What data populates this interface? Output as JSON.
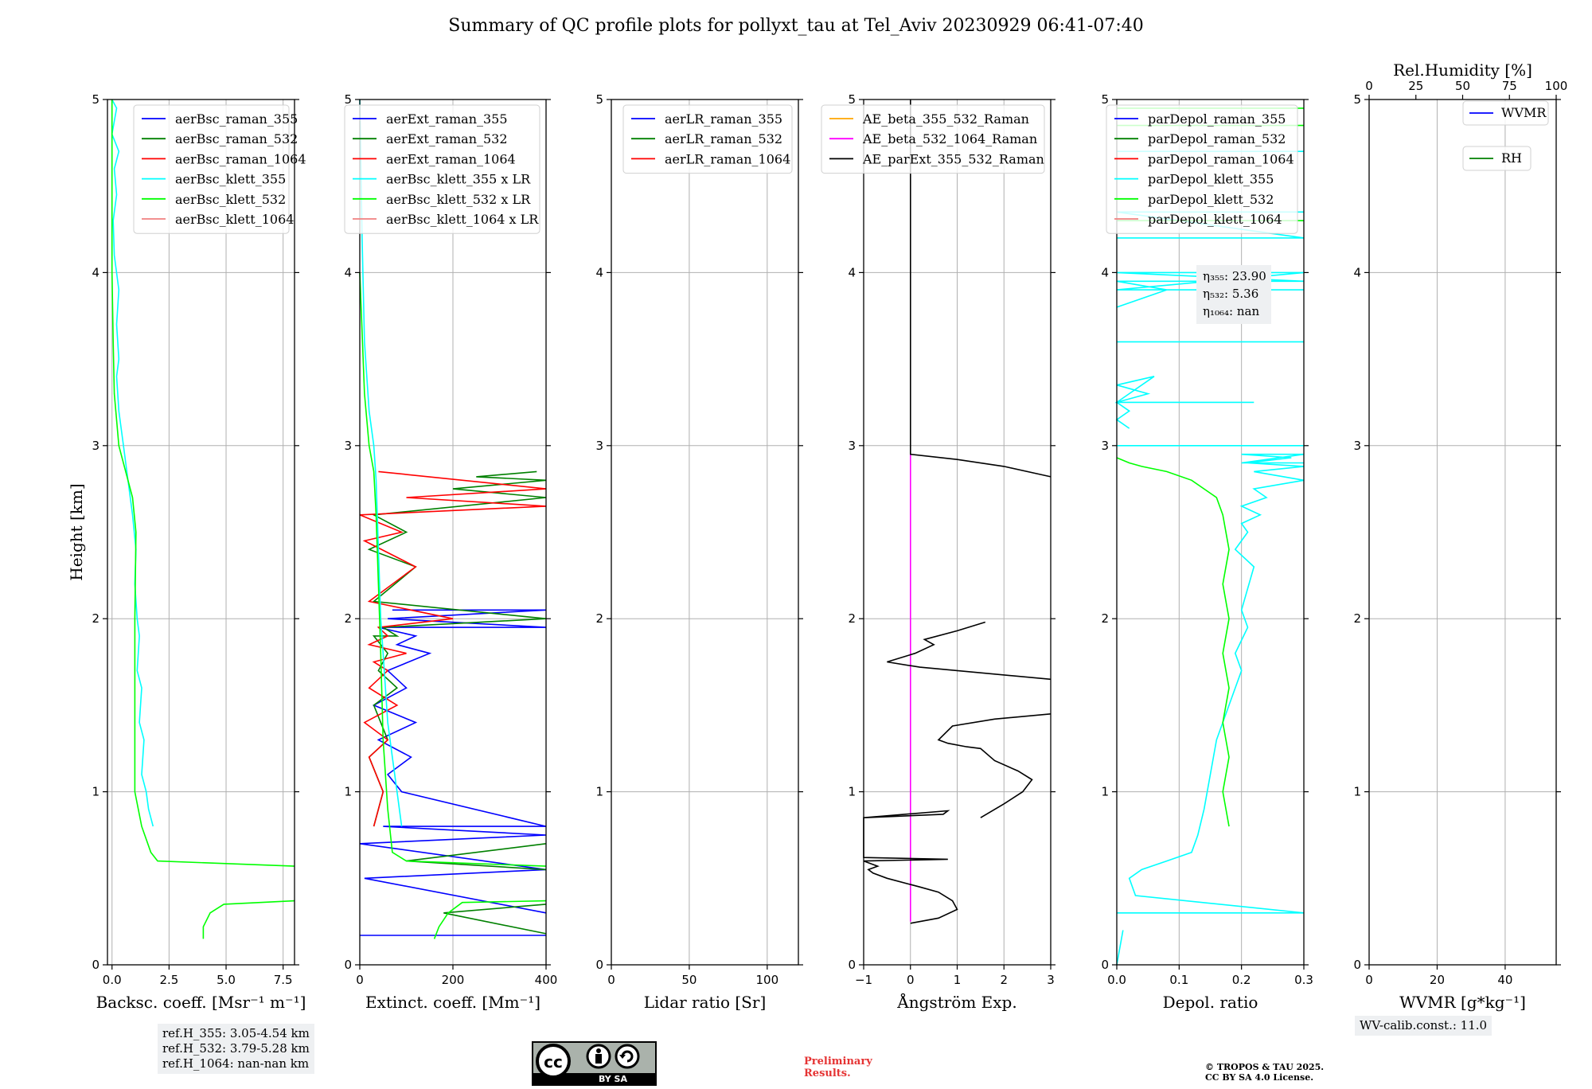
{
  "title": "Summary of QC profile plots for pollyxt_tau at Tel_Aviv 20230929 06:41-07:40",
  "chart_data": [
    {
      "type": "line",
      "panel": "backscatter",
      "xlabel": "Backsc. coeff. [Msr⁻¹ m⁻¹]",
      "ylabel": "Height [km]",
      "xlim": [
        -0.2,
        8.0
      ],
      "ylim": [
        0,
        5
      ],
      "xticks": [
        0.0,
        2.5,
        5.0,
        7.5
      ],
      "xtick_labels": [
        "0.0",
        "2.5",
        "5.0",
        "7.5"
      ],
      "yticks": [
        0,
        1,
        2,
        3,
        4,
        5
      ],
      "legend": [
        "aerBsc_raman_355",
        "aerBsc_raman_532",
        "aerBsc_raman_1064",
        "aerBsc_klett_355",
        "aerBsc_klett_532",
        "aerBsc_klett_1064"
      ],
      "legend_colors": [
        "#0000ff",
        "#008000",
        "#ff0000",
        "#00ffff",
        "#00ff00",
        "#f08080"
      ],
      "legend_position": "top-right",
      "series": [
        {
          "name": "aerBsc_klett_355",
          "color": "#00ffff",
          "x": [
            1.8,
            1.6,
            1.5,
            1.3,
            1.4,
            1.2,
            1.3,
            1.1,
            1.2,
            1.1,
            1.0,
            1.05,
            0.9,
            0.7,
            0.5,
            0.3,
            0.2,
            0.3,
            0.2,
            0.3,
            0.1,
            0.05,
            0.2,
            0.1,
            0.3,
            0.0,
            0.2,
            0.0
          ],
          "y": [
            0.8,
            0.9,
            1.0,
            1.1,
            1.3,
            1.4,
            1.6,
            1.7,
            1.9,
            2.0,
            2.2,
            2.4,
            2.6,
            2.8,
            3.0,
            3.2,
            3.4,
            3.5,
            3.7,
            3.9,
            4.1,
            4.3,
            4.45,
            4.6,
            4.7,
            4.8,
            4.95,
            5.0
          ]
        },
        {
          "name": "aerBsc_klett_532",
          "color": "#00ff00",
          "x": [
            4.0,
            4.0,
            4.3,
            4.9,
            8.0,
            null,
            8.0,
            2.0,
            1.7,
            1.3,
            1.0,
            1.0,
            1.0,
            1.05,
            0.9,
            0.6,
            0.3,
            0.1,
            0.05,
            0.0,
            0.0,
            0.0,
            0.0,
            0.0
          ],
          "y": [
            0.15,
            0.22,
            0.3,
            0.35,
            0.37,
            null,
            0.57,
            0.6,
            0.65,
            0.8,
            1.0,
            1.5,
            2.0,
            2.5,
            2.7,
            2.85,
            3.0,
            3.3,
            3.6,
            4.0,
            4.3,
            4.6,
            4.8,
            5.0
          ]
        }
      ]
    },
    {
      "type": "line",
      "panel": "extinction",
      "xlabel": "Extinct. coeff. [Mm⁻¹]",
      "xlim": [
        0,
        400
      ],
      "ylim": [
        0,
        5
      ],
      "xticks": [
        0,
        200,
        400
      ],
      "xtick_labels": [
        "0",
        "200",
        "400"
      ],
      "yticks": [
        0,
        1,
        2,
        3,
        4,
        5
      ],
      "legend": [
        "aerExt_raman_355",
        "aerExt_raman_532",
        "aerExt_raman_1064",
        "aerBsc_klett_355 x LR",
        "aerBsc_klett_532 x LR",
        "aerBsc_klett_1064 x LR"
      ],
      "legend_colors": [
        "#0000ff",
        "#008000",
        "#ff0000",
        "#00ffff",
        "#00ff00",
        "#f08080"
      ],
      "legend_position": "top-right",
      "series": [
        {
          "name": "aerExt_raman_355",
          "color": "#0000ff",
          "x": [
            0,
            400,
            null,
            400,
            10,
            400,
            0,
            400,
            50,
            400,
            90,
            60,
            110,
            40,
            120,
            30,
            100,
            60,
            150,
            80,
            120,
            40,
            400,
            60,
            400,
            70,
            400
          ],
          "y": [
            0.17,
            0.17,
            null,
            0.3,
            0.5,
            0.55,
            0.7,
            0.75,
            0.8,
            0.8,
            1.0,
            1.1,
            1.2,
            1.3,
            1.4,
            1.5,
            1.6,
            1.7,
            1.8,
            1.85,
            1.9,
            1.95,
            1.95,
            2.0,
            2.05,
            2.05,
            2.05
          ]
        },
        {
          "name": "aerExt_raman_532",
          "color": "#008000",
          "x": [
            400,
            180,
            400,
            null,
            400,
            100,
            400,
            null,
            30,
            50,
            20,
            60,
            30,
            80,
            40,
            60,
            30,
            80,
            50,
            400,
            30,
            120,
            20,
            100,
            30,
            400,
            200,
            400,
            250,
            380
          ],
          "y": [
            0.18,
            0.3,
            0.35,
            null,
            0.55,
            0.6,
            0.7,
            null,
            0.8,
            1.0,
            1.2,
            1.3,
            1.5,
            1.6,
            1.7,
            1.8,
            1.9,
            1.9,
            1.95,
            2.0,
            2.1,
            2.3,
            2.4,
            2.5,
            2.6,
            2.7,
            2.75,
            2.8,
            2.82,
            2.85
          ]
        },
        {
          "name": "aerExt_raman_1064",
          "color": "#ff0000",
          "x": [
            30,
            50,
            20,
            60,
            10,
            80,
            20,
            60,
            30,
            100,
            20,
            60,
            40,
            200,
            20,
            120,
            10,
            90,
            0,
            400,
            100,
            400,
            40
          ],
          "y": [
            0.8,
            1.0,
            1.2,
            1.3,
            1.4,
            1.5,
            1.6,
            1.7,
            1.75,
            1.8,
            1.85,
            1.9,
            1.95,
            2.0,
            2.1,
            2.3,
            2.45,
            2.5,
            2.6,
            2.65,
            2.7,
            2.75,
            2.85
          ]
        },
        {
          "name": "aerBsc_klett_355 x LR",
          "color": "#00ffff",
          "x": [
            90,
            80,
            70,
            60,
            55,
            50,
            45,
            40,
            35,
            30,
            20,
            10,
            5,
            0
          ],
          "y": [
            0.8,
            1.0,
            1.2,
            1.4,
            1.6,
            1.8,
            2.0,
            2.4,
            2.8,
            3.0,
            3.2,
            3.6,
            4.2,
            5.0
          ]
        },
        {
          "name": "aerBsc_klett_532 x LR",
          "color": "#00ff00",
          "x": [
            160,
            170,
            190,
            220,
            400,
            null,
            400,
            100,
            70,
            60,
            50,
            45,
            40,
            35,
            30,
            20,
            10,
            0
          ],
          "y": [
            0.15,
            0.22,
            0.3,
            0.36,
            0.37,
            null,
            0.57,
            0.6,
            0.65,
            0.9,
            1.3,
            1.8,
            2.2,
            2.6,
            2.85,
            3.0,
            3.3,
            4.0
          ]
        }
      ]
    },
    {
      "type": "line",
      "panel": "lidar_ratio",
      "xlabel": "Lidar ratio [Sr]",
      "xlim": [
        0,
        120
      ],
      "ylim": [
        0,
        5
      ],
      "xticks": [
        0,
        50,
        100
      ],
      "xtick_labels": [
        "0",
        "50",
        "100"
      ],
      "yticks": [
        0,
        1,
        2,
        3,
        4,
        5
      ],
      "legend": [
        "aerLR_raman_355",
        "aerLR_raman_532",
        "aerLR_raman_1064"
      ],
      "legend_colors": [
        "#0000ff",
        "#008000",
        "#ff0000"
      ],
      "legend_position": "top-left",
      "series": []
    },
    {
      "type": "line",
      "panel": "angstrom",
      "xlabel": "Ångström Exp.",
      "xlim": [
        -1,
        3
      ],
      "ylim": [
        0,
        5
      ],
      "xticks": [
        -1,
        0,
        1,
        2,
        3
      ],
      "xtick_labels": [
        "−1",
        "0",
        "1",
        "2",
        "3"
      ],
      "yticks": [
        0,
        1,
        2,
        3,
        4,
        5
      ],
      "legend": [
        "AE_beta_355_532_Raman",
        "AE_beta_532_1064_Raman",
        "AE_parExt_355_532_Raman"
      ],
      "legend_colors": [
        "#ffa500",
        "#ff00ff",
        "#000000"
      ],
      "legend_position": "top-right",
      "series": [
        {
          "name": "AE_beta_532_1064_Raman",
          "color": "#ff00ff",
          "x": [
            0,
            0
          ],
          "y": [
            0.25,
            2.95
          ]
        },
        {
          "name": "AE_parExt_355_532_Raman",
          "color": "#000000",
          "x": [
            0,
            0.6,
            1.0,
            0.9,
            0.6,
            0.2,
            -0.5,
            -0.8,
            -0.9,
            -0.7,
            -1.0,
            0.8,
            -1.0,
            -1.0,
            0.7,
            0.8,
            -1.0,
            null,
            1.5,
            2.0,
            2.4,
            2.6,
            2.3,
            1.8,
            1.5,
            1.2,
            0.8,
            0.6,
            0.9,
            1.8,
            3.0,
            null,
            3.0,
            0.2,
            -0.5,
            0.1,
            0.5,
            0.3,
            1.0,
            1.6,
            null,
            3.0,
            2.0,
            1.0,
            0.0,
            0.0
          ],
          "y": [
            0.24,
            0.27,
            0.32,
            0.37,
            0.42,
            0.45,
            0.5,
            0.53,
            0.55,
            0.57,
            0.6,
            0.61,
            0.62,
            0.85,
            0.87,
            0.89,
            0.85,
            null,
            0.85,
            0.93,
            1.0,
            1.07,
            1.12,
            1.18,
            1.25,
            1.26,
            1.28,
            1.3,
            1.38,
            1.42,
            1.45,
            null,
            1.65,
            1.72,
            1.75,
            1.8,
            1.85,
            1.88,
            1.93,
            1.98,
            null,
            2.82,
            2.88,
            2.92,
            2.95,
            5.0
          ]
        }
      ]
    },
    {
      "type": "line",
      "panel": "depolarization",
      "xlabel": "Depol. ratio",
      "xlim": [
        0.0,
        0.3
      ],
      "ylim": [
        0,
        5
      ],
      "xticks": [
        0.0,
        0.1,
        0.2,
        0.3
      ],
      "xtick_labels": [
        "0.0",
        "0.1",
        "0.2",
        "0.3"
      ],
      "yticks": [
        0,
        1,
        2,
        3,
        4,
        5
      ],
      "legend": [
        "parDepol_raman_355",
        "parDepol_raman_532",
        "parDepol_raman_1064",
        "parDepol_klett_355",
        "parDepol_klett_532",
        "parDepol_klett_1064"
      ],
      "legend_colors": [
        "#0000ff",
        "#008000",
        "#ff0000",
        "#00ffff",
        "#00ff00",
        "#f08080"
      ],
      "legend_position": "top-left",
      "annotation": [
        "η₃₅₅: 23.90",
        "η₅₃₂: 5.36",
        "η₁₀₆₄: nan"
      ],
      "series": [
        {
          "name": "parDepol_klett_355",
          "color": "#00ffff",
          "x": [
            0.01,
            0.0,
            null,
            0.0,
            0.3,
            null,
            0.3,
            0.03,
            0.02,
            0.04,
            0.08,
            0.12,
            0.13,
            0.14,
            0.15,
            0.16,
            0.18,
            0.2,
            0.19,
            0.21,
            0.2,
            0.22,
            0.19,
            0.21,
            0.2,
            0.23,
            0.2,
            0.24,
            0.22,
            0.3,
            0.22,
            0.3,
            0.21,
            0.28,
            0.2,
            0.3,
            0.2,
            0.3,
            null,
            0.0,
            0.3,
            null,
            0.02,
            0.0,
            0.02,
            0.0,
            0.05,
            0.0,
            0.06,
            0.0,
            0.22,
            null,
            0.0,
            0.3,
            null,
            0.0,
            0.08,
            0.0,
            0.3,
            0.0,
            0.3,
            0.0,
            0.3,
            null,
            0.0,
            0.3,
            0.0,
            0.3,
            null,
            0.0,
            0.3
          ],
          "y": [
            0.2,
            0.0,
            null,
            0.3,
            0.3,
            null,
            0.3,
            0.4,
            0.5,
            0.55,
            0.6,
            0.65,
            0.75,
            0.9,
            1.1,
            1.3,
            1.5,
            1.7,
            1.8,
            1.95,
            2.05,
            2.3,
            2.4,
            2.5,
            2.55,
            2.6,
            2.65,
            2.7,
            2.75,
            2.8,
            2.85,
            2.88,
            2.9,
            2.93,
            2.95,
            2.95,
            2.9,
            2.9,
            null,
            3.0,
            3.0,
            null,
            3.1,
            3.15,
            3.2,
            3.25,
            3.3,
            3.35,
            3.4,
            3.25,
            3.25,
            null,
            3.6,
            3.6,
            null,
            3.8,
            3.9,
            3.95,
            3.95,
            4.0,
            4.0,
            3.9,
            3.9,
            null,
            4.2,
            4.2,
            4.35,
            4.35,
            null,
            4.7,
            4.7
          ]
        },
        {
          "name": "parDepol_klett_532",
          "color": "#00ff00",
          "x": [
            0.18,
            0.17,
            0.18,
            0.17,
            0.18,
            0.17,
            0.18,
            0.17,
            0.18,
            0.17,
            0.16,
            0.12,
            0.08,
            0.04,
            0.02,
            0.0,
            null,
            0.0,
            0.3,
            null,
            0.0,
            0.3,
            null,
            0.0,
            0.3
          ],
          "y": [
            0.8,
            1.0,
            1.2,
            1.4,
            1.6,
            1.8,
            2.0,
            2.2,
            2.4,
            2.6,
            2.7,
            2.8,
            2.85,
            2.88,
            2.9,
            2.93,
            null,
            4.3,
            4.3,
            null,
            4.85,
            4.85,
            null,
            4.95,
            4.95
          ]
        }
      ]
    },
    {
      "type": "line",
      "panel": "water_vapor",
      "xlabel": "WVMR [g*kg⁻¹]",
      "xlim": [
        0,
        55
      ],
      "ylim": [
        0,
        5
      ],
      "xticks": [
        0,
        20,
        40
      ],
      "xtick_labels": [
        "0",
        "20",
        "40"
      ],
      "top_axis_label": "Rel.Humidity [%]",
      "top_axis_lim": [
        0,
        100
      ],
      "top_xticks": [
        0,
        25,
        50,
        75,
        100
      ],
      "top_xtick_labels": [
        "0",
        "25",
        "50",
        "75",
        "100"
      ],
      "yticks": [
        0,
        1,
        2,
        3,
        4,
        5
      ],
      "legend": [
        "WVMR",
        "RH"
      ],
      "legend_colors": [
        "#0000ff",
        "#008000"
      ],
      "legend_position": "top-right",
      "series": []
    }
  ],
  "notes": {
    "ref_heights": "ref.H_355: 3.05-4.54 km\nref.H_532: 3.79-5.28 km\nref.H_1064: nan-nan km",
    "wv_calib": "WV-calib.const.: 11.0",
    "preliminary": "Preliminary\nResults.",
    "copyright": "© TROPOS & TAU 2025.\nCC BY SA 4.0 License.",
    "license_badge": "BY SA"
  },
  "icons": {
    "cc": "cc-icon",
    "by": "attribution-person-icon",
    "sa": "share-alike-icon"
  }
}
